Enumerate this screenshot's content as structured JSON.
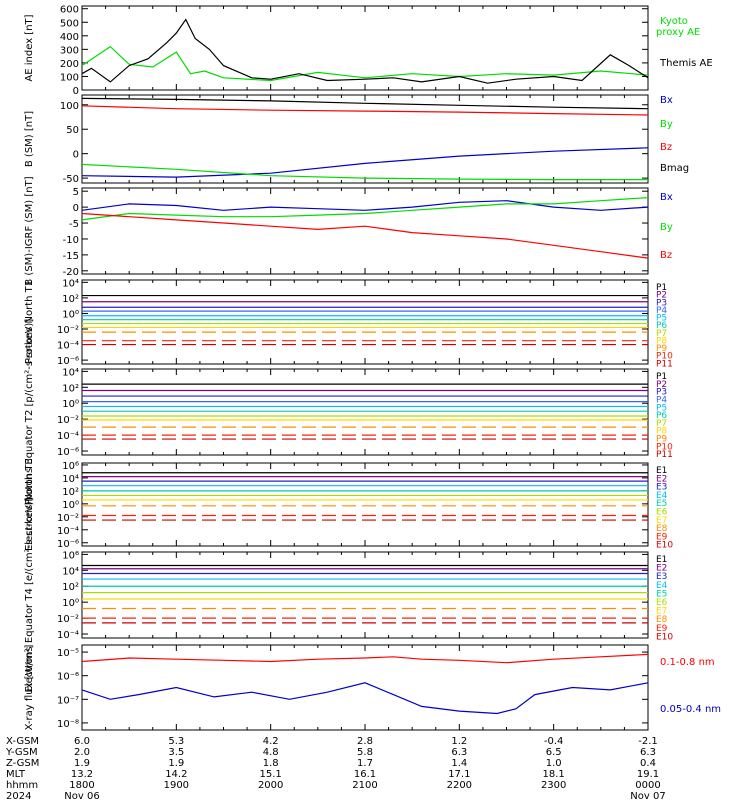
{
  "colors": {
    "black": "#000000",
    "red": "#ff0000",
    "green": "#00dd00",
    "blue": "#0000cc"
  },
  "chart_data": [
    {
      "type": "line",
      "id": "ae",
      "ylabel": "AE index [nT]",
      "yticks": [
        0,
        100,
        200,
        300,
        400,
        500,
        600
      ],
      "ylim": [
        0,
        620
      ],
      "series": [
        {
          "name": "Kyoto proxy AE",
          "color": "green",
          "x": [
            0,
            0.3,
            0.5,
            0.75,
            1,
            1.15,
            1.3,
            1.5,
            2,
            2.5,
            3,
            3.5,
            4,
            4.5,
            5,
            5.5,
            6
          ],
          "y": [
            180,
            320,
            190,
            170,
            280,
            120,
            140,
            90,
            70,
            130,
            90,
            120,
            100,
            120,
            110,
            140,
            110
          ]
        },
        {
          "name": "Themis AE",
          "color": "black",
          "x": [
            0,
            0.1,
            0.3,
            0.5,
            0.7,
            0.9,
            1.0,
            1.1,
            1.2,
            1.35,
            1.5,
            1.8,
            2,
            2.3,
            2.6,
            3,
            3.3,
            3.6,
            4,
            4.3,
            4.6,
            5,
            5.3,
            5.6,
            5.8,
            6
          ],
          "y": [
            120,
            160,
            60,
            180,
            230,
            350,
            420,
            520,
            380,
            300,
            180,
            90,
            80,
            120,
            70,
            80,
            90,
            60,
            100,
            50,
            80,
            100,
            70,
            260,
            180,
            90
          ]
        }
      ]
    },
    {
      "type": "line",
      "id": "bsm",
      "ylabel": "B (SM) [nT]",
      "yticks": [
        -50,
        0,
        50,
        100
      ],
      "ylim": [
        -60,
        120
      ],
      "series": [
        {
          "name": "Bx",
          "color": "blue",
          "x": [
            0,
            1,
            2,
            3,
            4,
            5,
            6
          ],
          "y": [
            -45,
            -48,
            -40,
            -20,
            -5,
            5,
            12
          ]
        },
        {
          "name": "By",
          "color": "green",
          "x": [
            0,
            1,
            2,
            3,
            4,
            5,
            6
          ],
          "y": [
            -22,
            -32,
            -45,
            -50,
            -52,
            -53,
            -53
          ]
        },
        {
          "name": "Bz",
          "color": "red",
          "x": [
            0,
            1,
            2,
            3,
            4,
            5,
            6
          ],
          "y": [
            98,
            92,
            89,
            87,
            85,
            82,
            79
          ]
        },
        {
          "name": "Bmag",
          "color": "black",
          "x": [
            0,
            1,
            2,
            3,
            4,
            5,
            6
          ],
          "y": [
            113,
            111,
            108,
            103,
            99,
            95,
            92
          ]
        }
      ]
    },
    {
      "type": "line",
      "id": "bsm-igrf",
      "ylabel": "B (SM)-IGRF (SM) [nT]",
      "yticks": [
        -20,
        -15,
        -10,
        -5,
        0,
        5
      ],
      "ylim": [
        -21,
        6
      ],
      "series": [
        {
          "name": "Bx",
          "color": "blue",
          "x": [
            0,
            0.5,
            1,
            1.5,
            2,
            2.5,
            3,
            3.5,
            4,
            4.5,
            5,
            5.5,
            6
          ],
          "y": [
            -1,
            1,
            0.5,
            -1,
            0,
            -0.5,
            -1,
            0,
            1.5,
            2,
            0,
            -1,
            0
          ]
        },
        {
          "name": "By",
          "color": "green",
          "x": [
            0,
            0.5,
            1,
            1.5,
            2,
            2.5,
            3,
            3.5,
            4,
            4.5,
            5,
            5.5,
            6
          ],
          "y": [
            -4,
            -2,
            -2.5,
            -3,
            -3,
            -2.5,
            -2,
            -1,
            0,
            1,
            1,
            2,
            3
          ]
        },
        {
          "name": "Bz",
          "color": "red",
          "x": [
            0,
            0.5,
            1,
            1.5,
            2,
            2.5,
            3,
            3.5,
            4,
            4.5,
            5,
            5.5,
            6
          ],
          "y": [
            -2,
            -3,
            -4,
            -5,
            -6,
            -7,
            -6,
            -8,
            -9,
            -10,
            -12,
            -14,
            -16
          ]
        }
      ]
    },
    {
      "type": "line",
      "id": "protons-t1",
      "ylabel": "Protons North T1",
      "ylog": true,
      "yticks": [
        "10⁴",
        "10²",
        "10⁰",
        "10⁻²",
        "10⁻⁴",
        "10⁻⁶"
      ],
      "ylim": [
        -6.5,
        4.3
      ],
      "channels": [
        "P1",
        "P2",
        "P3",
        "P4",
        "P5",
        "P6",
        "P7",
        "P8",
        "P9",
        "P10",
        "P11"
      ],
      "levels": [
        2.3,
        1.5,
        0.8,
        0.3,
        -0.3,
        -0.8,
        -1.3,
        -1.8,
        -2.4,
        -3.5,
        -4.0
      ],
      "channel_colors": [
        "#000000",
        "#800080",
        "#2020cc",
        "#3366ff",
        "#00bfff",
        "#00ccaa",
        "#aadd00",
        "#ffd700",
        "#ff8c00",
        "#ff2000",
        "#cc0000"
      ]
    },
    {
      "type": "line",
      "id": "protons-t2",
      "ylabel": "Protons Equator T2 [p/(cm²-s-sr-keV)]",
      "ylog": true,
      "yticks": [
        "10⁴",
        "10²",
        "10⁰",
        "10⁻²",
        "10⁻⁴",
        "10⁻⁶"
      ],
      "ylim": [
        -6.5,
        4.3
      ],
      "channels": [
        "P1",
        "P2",
        "P3",
        "P4",
        "P5",
        "P6",
        "P7",
        "P8",
        "P9",
        "P10",
        "P11"
      ],
      "levels": [
        2.4,
        1.6,
        0.9,
        0.2,
        -0.4,
        -1.0,
        -1.6,
        -2.1,
        -3.0,
        -4.0,
        -4.5
      ],
      "channel_colors": [
        "#000000",
        "#800080",
        "#2020cc",
        "#3366ff",
        "#00bfff",
        "#00ccaa",
        "#aadd00",
        "#ffd700",
        "#ff8c00",
        "#ff2000",
        "#cc0000"
      ]
    },
    {
      "type": "line",
      "id": "electrons-t3",
      "ylabel": "Electrons North T3",
      "ylog": true,
      "yticks": [
        "10⁶",
        "10⁴",
        "10²",
        "10⁰",
        "10⁻²",
        "10⁻⁴",
        "10⁻⁶"
      ],
      "ylim": [
        -6.5,
        6.3
      ],
      "channels": [
        "E1",
        "E2",
        "E3",
        "E4",
        "E5",
        "E6",
        "E7",
        "E8",
        "E9",
        "E10"
      ],
      "levels": [
        4.8,
        4.2,
        3.5,
        2.8,
        2.0,
        1.3,
        0.6,
        -0.3,
        -1.8,
        -2.5
      ],
      "channel_colors": [
        "#000000",
        "#800080",
        "#2020cc",
        "#00bfff",
        "#00ccaa",
        "#aadd00",
        "#ffd700",
        "#ff8c00",
        "#ff2000",
        "#cc0000"
      ]
    },
    {
      "type": "line",
      "id": "electrons-t4",
      "ylabel": "Electrons Equator T4 [e/(cm²-s-sr-keV)]",
      "ylog": true,
      "yticks": [
        "10⁶",
        "10⁴",
        "10²",
        "10⁰",
        "10⁻²",
        "10⁻⁴"
      ],
      "ylim": [
        -4.5,
        6.3
      ],
      "channels": [
        "E1",
        "E2",
        "E3",
        "E4",
        "E5",
        "E6",
        "E7",
        "E8",
        "E9",
        "E10"
      ],
      "levels": [
        4.6,
        4.2,
        3.6,
        2.9,
        2.0,
        1.2,
        0.4,
        -0.8,
        -2.0,
        -2.6
      ],
      "channel_colors": [
        "#000000",
        "#800080",
        "#2020cc",
        "#00bfff",
        "#00ccaa",
        "#aadd00",
        "#ffd700",
        "#ff8c00",
        "#ff2000",
        "#cc0000"
      ]
    },
    {
      "type": "line",
      "id": "xray",
      "ylabel": "X-ray flux [W/m²]",
      "ylog": true,
      "yticks": [
        "10⁻⁵",
        "10⁻⁶",
        "10⁻⁷",
        "10⁻⁸"
      ],
      "ylim": [
        -8.3,
        -4.7
      ],
      "series": [
        {
          "name": "0.1-0.8 nm",
          "color": "red",
          "x": [
            0,
            0.5,
            1,
            1.5,
            2,
            2.5,
            3,
            3.3,
            3.6,
            4,
            4.5,
            5,
            5.5,
            6
          ],
          "y": [
            -5.4,
            -5.25,
            -5.3,
            -5.35,
            -5.4,
            -5.3,
            -5.25,
            -5.2,
            -5.3,
            -5.35,
            -5.45,
            -5.3,
            -5.2,
            -5.1
          ]
        },
        {
          "name": "0.05-0.4 nm",
          "color": "blue",
          "x": [
            0,
            0.3,
            0.6,
            1,
            1.4,
            1.8,
            2.2,
            2.6,
            3,
            3.3,
            3.6,
            4,
            4.4,
            4.6,
            4.8,
            5.2,
            5.6,
            6
          ],
          "y": [
            -6.6,
            -7.0,
            -6.8,
            -6.5,
            -6.9,
            -6.7,
            -7.0,
            -6.7,
            -6.3,
            -6.8,
            -7.3,
            -7.5,
            -7.6,
            -7.4,
            -6.8,
            -6.5,
            -6.6,
            -6.3
          ]
        }
      ]
    }
  ],
  "kyoto_label": [
    "Kyoto",
    "proxy AE"
  ],
  "themis_label": "Themis AE",
  "x_axis": {
    "tick_count": 7,
    "rows": [
      {
        "label": "X-GSM",
        "values": [
          "6.0",
          "5.3",
          "4.2",
          "2.8",
          "1.2",
          "-0.4",
          "-2.1"
        ]
      },
      {
        "label": "Y-GSM",
        "values": [
          "2.0",
          "3.5",
          "4.8",
          "5.8",
          "6.3",
          "6.5",
          "6.3"
        ]
      },
      {
        "label": "Z-GSM",
        "values": [
          "1.9",
          "1.9",
          "1.8",
          "1.7",
          "1.4",
          "1.0",
          "0.4"
        ]
      },
      {
        "label": "MLT",
        "values": [
          "13.2",
          "14.2",
          "15.1",
          "16.1",
          "17.1",
          "18.1",
          "19.1"
        ]
      },
      {
        "label": "hhmm",
        "values": [
          "1800",
          "1900",
          "2000",
          "2100",
          "2200",
          "2300",
          "0000"
        ]
      }
    ],
    "date_row": {
      "label": "2024",
      "start": "Nov 06",
      "end": "Nov 07"
    }
  }
}
